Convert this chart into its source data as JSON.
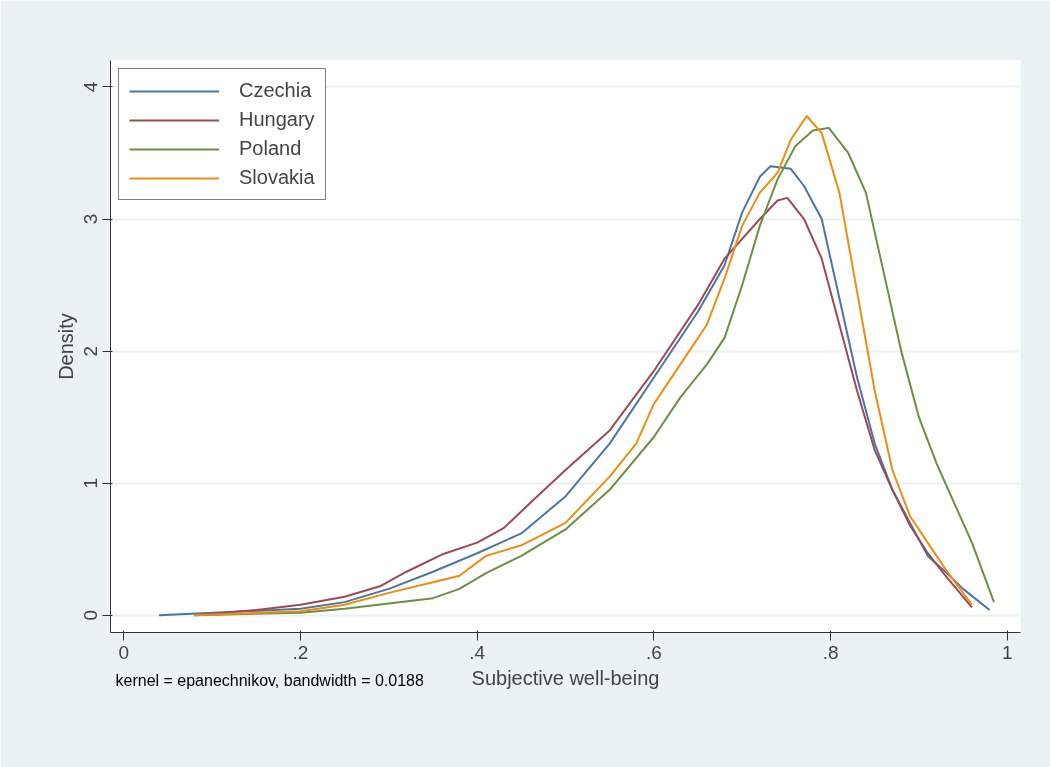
{
  "chart_data": {
    "type": "line",
    "xlabel": "Subjective well-being",
    "ylabel": "Density",
    "xlim": [
      -0.015,
      1.015
    ],
    "ylim": [
      -0.13,
      4.2
    ],
    "xticks": [
      {
        "value": 0,
        "label": "0"
      },
      {
        "value": 0.2,
        "label": ".2"
      },
      {
        "value": 0.4,
        "label": ".4"
      },
      {
        "value": 0.6,
        "label": ".6"
      },
      {
        "value": 0.8,
        "label": ".8"
      },
      {
        "value": 1,
        "label": "1"
      }
    ],
    "yticks": [
      0,
      1,
      2,
      3,
      4
    ],
    "grid": "y",
    "legend": "top left",
    "line_style": "solid",
    "marker": "none",
    "annotations": [
      "kernel = epanechnikov, bandwidth = 0.0188"
    ],
    "series": [
      {
        "name": "Czechia",
        "color": "#4a76a6",
        "x": [
          0.04,
          0.2,
          0.25,
          0.3,
          0.35,
          0.4,
          0.45,
          0.5,
          0.55,
          0.6,
          0.65,
          0.68,
          0.7,
          0.72,
          0.732,
          0.755,
          0.77,
          0.79,
          0.81,
          0.83,
          0.85,
          0.87,
          0.89,
          0.91,
          0.93,
          0.95,
          0.98
        ],
        "values": [
          0,
          0.05,
          0.1,
          0.2,
          0.33,
          0.47,
          0.62,
          0.9,
          1.3,
          1.8,
          2.3,
          2.65,
          3.05,
          3.32,
          3.4,
          3.38,
          3.25,
          3.0,
          2.4,
          1.8,
          1.3,
          0.95,
          0.7,
          0.45,
          0.33,
          0.2,
          0.04
        ]
      },
      {
        "name": "Hungary",
        "color": "#9c4a56",
        "x": [
          0.08,
          0.15,
          0.2,
          0.25,
          0.29,
          0.32,
          0.36,
          0.4,
          0.43,
          0.46,
          0.5,
          0.55,
          0.6,
          0.65,
          0.68,
          0.7,
          0.72,
          0.74,
          0.751,
          0.77,
          0.79,
          0.81,
          0.83,
          0.85,
          0.87,
          0.89,
          0.91,
          0.93,
          0.96
        ],
        "values": [
          0,
          0.04,
          0.08,
          0.14,
          0.22,
          0.33,
          0.46,
          0.55,
          0.66,
          0.85,
          1.1,
          1.4,
          1.85,
          2.35,
          2.7,
          2.85,
          3.0,
          3.14,
          3.16,
          3.0,
          2.7,
          2.2,
          1.7,
          1.25,
          0.95,
          0.68,
          0.47,
          0.3,
          0.06
        ]
      },
      {
        "name": "Poland",
        "color": "#6c8f43",
        "x": [
          0.08,
          0.2,
          0.25,
          0.3,
          0.35,
          0.38,
          0.41,
          0.45,
          0.5,
          0.55,
          0.6,
          0.63,
          0.66,
          0.68,
          0.7,
          0.72,
          0.74,
          0.76,
          0.78,
          0.798,
          0.82,
          0.84,
          0.86,
          0.88,
          0.9,
          0.92,
          0.94,
          0.96,
          0.985
        ],
        "values": [
          0,
          0.02,
          0.05,
          0.09,
          0.13,
          0.2,
          0.32,
          0.45,
          0.65,
          0.95,
          1.35,
          1.65,
          1.9,
          2.1,
          2.5,
          2.95,
          3.3,
          3.55,
          3.67,
          3.69,
          3.5,
          3.2,
          2.6,
          2.0,
          1.5,
          1.15,
          0.85,
          0.55,
          0.1
        ]
      },
      {
        "name": "Slovakia",
        "color": "#f08c10",
        "x": [
          0.08,
          0.2,
          0.25,
          0.3,
          0.35,
          0.38,
          0.41,
          0.45,
          0.5,
          0.55,
          0.58,
          0.6,
          0.63,
          0.66,
          0.68,
          0.7,
          0.72,
          0.74,
          0.755,
          0.773,
          0.79,
          0.81,
          0.83,
          0.85,
          0.87,
          0.89,
          0.91,
          0.93,
          0.96
        ],
        "values": [
          0,
          0.03,
          0.08,
          0.17,
          0.25,
          0.3,
          0.45,
          0.53,
          0.7,
          1.05,
          1.3,
          1.6,
          1.9,
          2.2,
          2.55,
          2.95,
          3.2,
          3.35,
          3.6,
          3.78,
          3.65,
          3.2,
          2.45,
          1.7,
          1.1,
          0.75,
          0.55,
          0.35,
          0.08
        ]
      }
    ]
  }
}
